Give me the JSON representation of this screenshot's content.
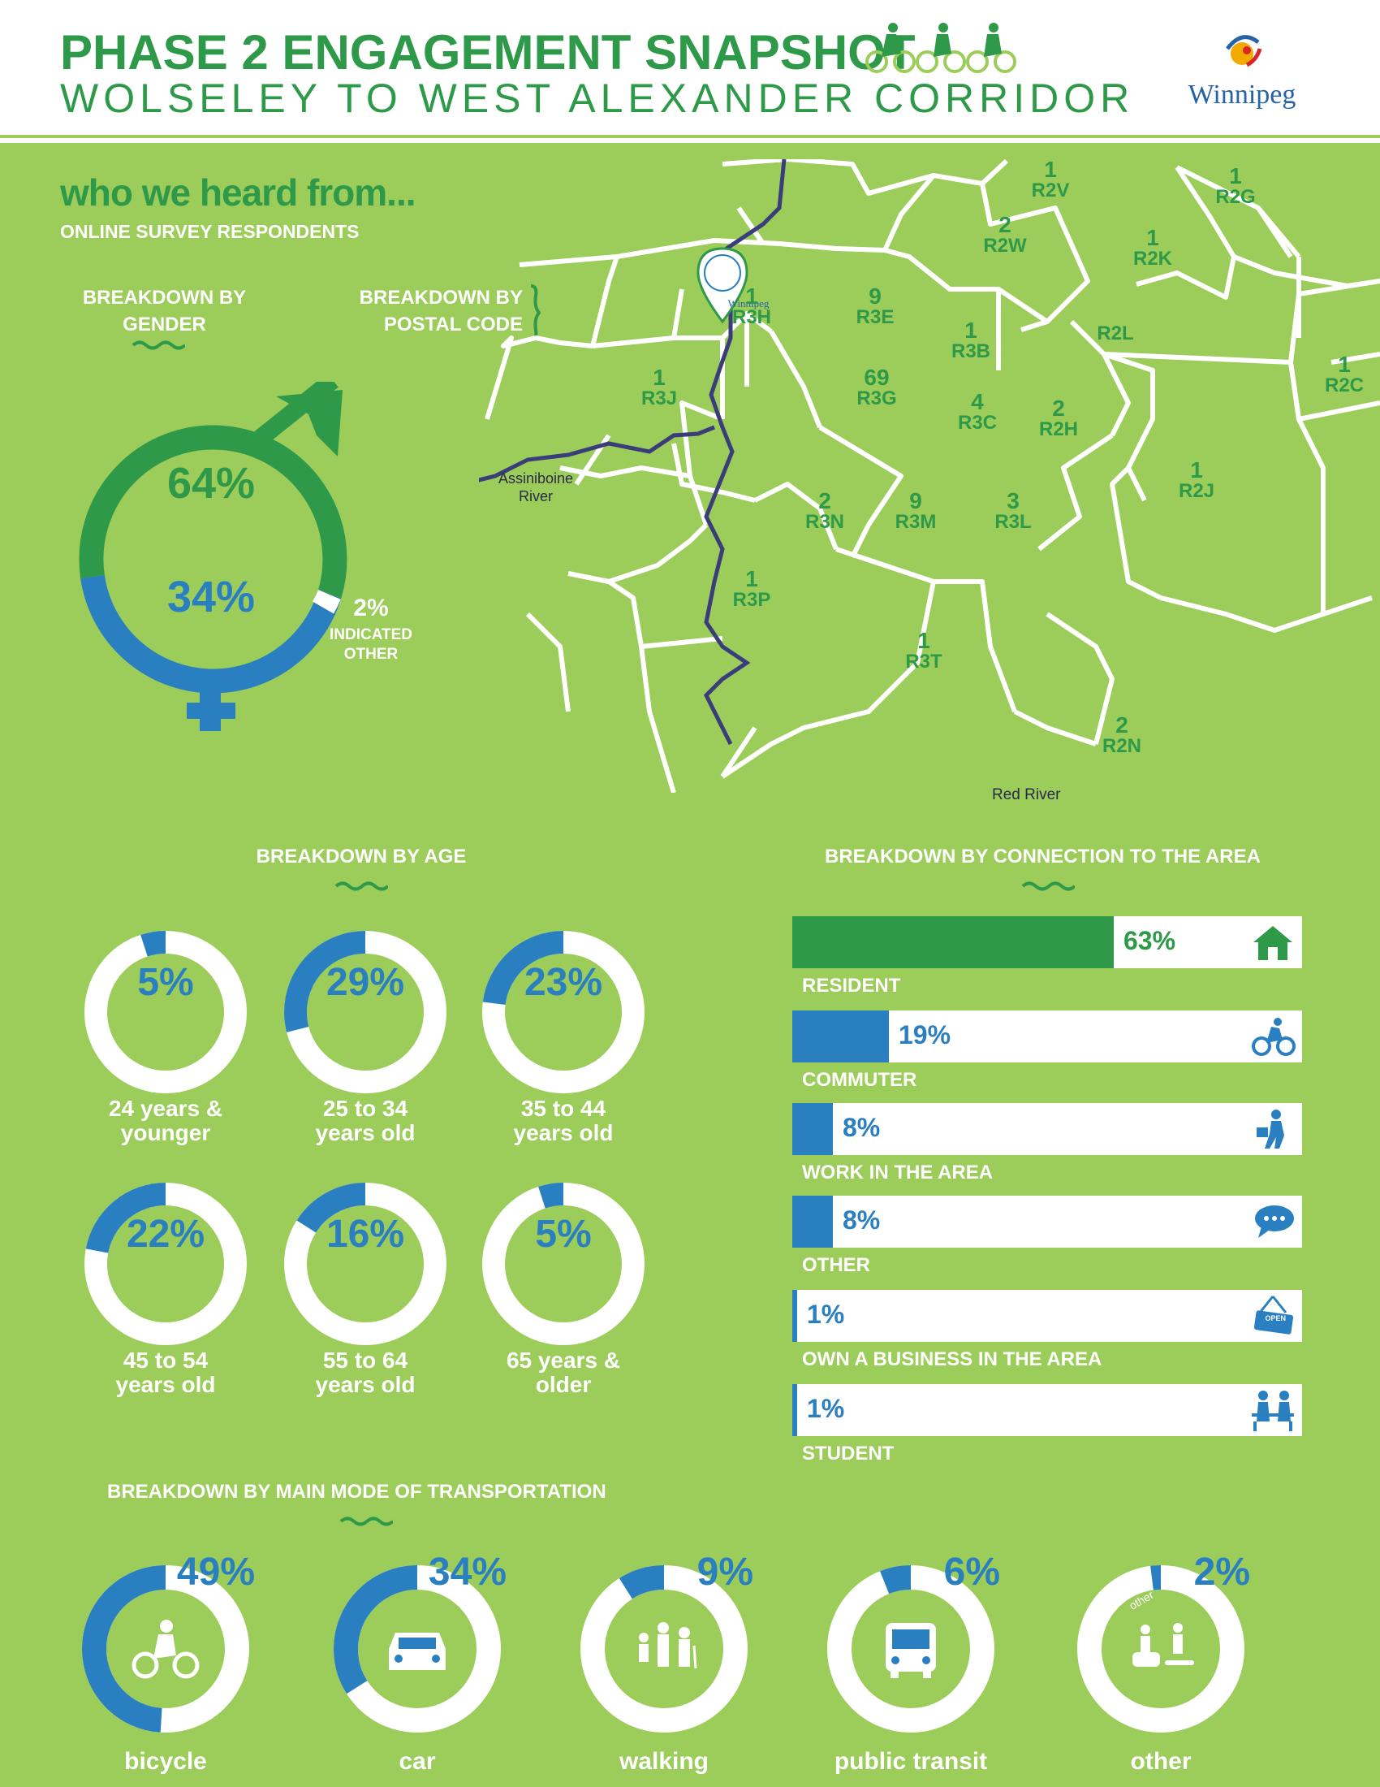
{
  "header": {
    "title": "PHASE 2 ENGAGEMENT SNAPSHOT",
    "subtitle": "WOLSELEY TO WEST ALEXANDER CORRIDOR",
    "logo_text": "Winnipeg"
  },
  "intro": {
    "heading": "who we heard from...",
    "subheading": "ONLINE SURVEY RESPONDENTS"
  },
  "gender": {
    "label_line1": "BREAKDOWN BY",
    "label_line2": "GENDER",
    "male_pct": "64%",
    "female_pct": "34%",
    "other_pct": "2%",
    "other_line1": "INDICATED",
    "other_line2": "OTHER",
    "colors": {
      "male": "#2e9a49",
      "female": "#2a7fc0"
    }
  },
  "postal": {
    "label_line1": "BREAKDOWN BY",
    "label_line2": "POSTAL CODE",
    "areas": [
      {
        "count": "1",
        "code": "R2V"
      },
      {
        "count": "1",
        "code": "R2G"
      },
      {
        "count": "2",
        "code": "R2W"
      },
      {
        "count": "1",
        "code": "R2K"
      },
      {
        "count": "1",
        "code": "R3H"
      },
      {
        "count": "9",
        "code": "R3E"
      },
      {
        "count": "",
        "code": "R2L"
      },
      {
        "count": "1",
        "code": "R2C"
      },
      {
        "count": "1",
        "code": "R3J"
      },
      {
        "count": "1",
        "code": "R3B"
      },
      {
        "count": "69",
        "code": "R3G"
      },
      {
        "count": "4",
        "code": "R3C"
      },
      {
        "count": "2",
        "code": "R2H"
      },
      {
        "count": "1",
        "code": "R2J"
      },
      {
        "count": "2",
        "code": "R3N"
      },
      {
        "count": "9",
        "code": "R3M"
      },
      {
        "count": "3",
        "code": "R3L"
      },
      {
        "count": "1",
        "code": "R3P"
      },
      {
        "count": "1",
        "code": "R3T"
      },
      {
        "count": "2",
        "code": "R2N"
      }
    ],
    "pin_label": "Winnipeg",
    "river_assiniboine_1": "Assiniboine",
    "river_assiniboine_2": "River",
    "river_red": "Red River"
  },
  "age": {
    "label": "BREAKDOWN BY AGE",
    "groups": [
      {
        "pct": "5%",
        "value": 5,
        "line1": "24 years &",
        "line2": "younger"
      },
      {
        "pct": "29%",
        "value": 29,
        "line1": "25 to 34",
        "line2": "years old"
      },
      {
        "pct": "23%",
        "value": 23,
        "line1": "35 to 44",
        "line2": "years old"
      },
      {
        "pct": "22%",
        "value": 22,
        "line1": "45 to 54",
        "line2": "years old"
      },
      {
        "pct": "16%",
        "value": 16,
        "line1": "55 to 64",
        "line2": "years old"
      },
      {
        "pct": "5%",
        "value": 5,
        "line1": "65 years &",
        "line2": "older"
      }
    ]
  },
  "connection": {
    "label": "BREAKDOWN BY CONNECTION TO THE AREA",
    "items": [
      {
        "pct": "63%",
        "value": 63,
        "label": "RESIDENT",
        "color": "#2e9a49",
        "icon": "house-icon"
      },
      {
        "pct": "19%",
        "value": 19,
        "label": "COMMUTER",
        "color": "#2a7fc0",
        "icon": "cyclist-icon"
      },
      {
        "pct": "8%",
        "value": 8,
        "label": "WORK IN THE AREA",
        "color": "#2a7fc0",
        "icon": "worker-icon"
      },
      {
        "pct": "8%",
        "value": 8,
        "label": "OTHER",
        "color": "#2a7fc0",
        "icon": "speech-bubble-icon"
      },
      {
        "pct": "1%",
        "value": 1,
        "label": "OWN A BUSINESS IN THE AREA",
        "color": "#2a7fc0",
        "icon": "open-sign-icon",
        "sign_text": "OPEN"
      },
      {
        "pct": "1%",
        "value": 1,
        "label": "STUDENT",
        "color": "#2a7fc0",
        "icon": "students-icon"
      }
    ]
  },
  "transport": {
    "label": "BREAKDOWN BY MAIN MODE OF TRANSPORTATION",
    "modes": [
      {
        "pct": "49%",
        "value": 49,
        "label": "bicycle",
        "icon": "bicycle-icon"
      },
      {
        "pct": "34%",
        "value": 34,
        "label": "car",
        "icon": "car-icon"
      },
      {
        "pct": "9%",
        "value": 9,
        "label": "walking",
        "icon": "walking-icon"
      },
      {
        "pct": "6%",
        "value": 6,
        "label": "public transit",
        "icon": "bus-icon"
      },
      {
        "pct": "2%",
        "value": 2,
        "label": "other",
        "icon": "scooter-icon",
        "icon_text": "other"
      }
    ]
  },
  "colors": {
    "background": "#9ccc5a",
    "green": "#2e9a49",
    "blue": "#2a7fc0",
    "navy_river": "#3a3d7a"
  }
}
